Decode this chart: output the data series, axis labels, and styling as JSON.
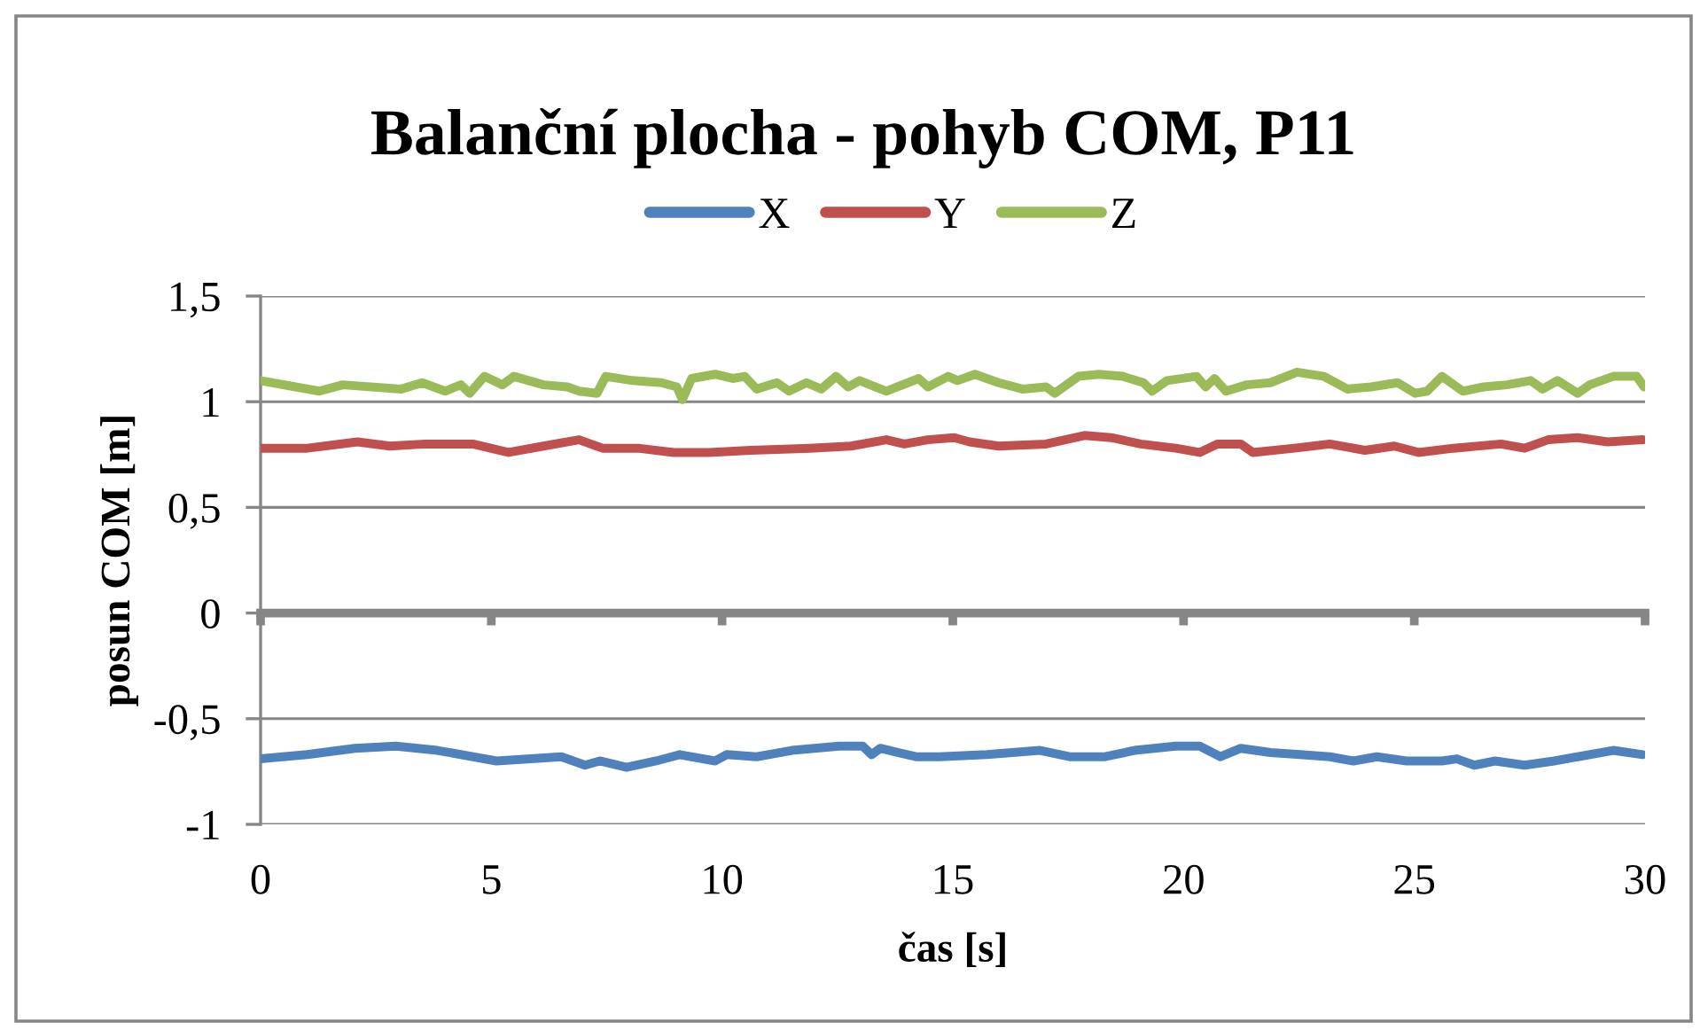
{
  "chart_data": {
    "type": "line",
    "title": "Balanční plocha - pohyb COM, P11",
    "xlabel": "čas [s]",
    "ylabel": "posun COM [m]",
    "xlim": [
      0,
      30
    ],
    "xticks": [
      0,
      5,
      10,
      15,
      20,
      25,
      30
    ],
    "ylim": [
      -1,
      1.5
    ],
    "yticks": [
      {
        "value": 1.5,
        "label": "1,5"
      },
      1,
      {
        "value": 0.5,
        "label": "0,5"
      },
      0,
      {
        "value": -0.5,
        "label": "-0,5"
      },
      -1
    ],
    "grid": "y",
    "legend": "top",
    "marker": "none",
    "line_style": "solid",
    "series": [
      {
        "name": "X",
        "color": "#4f81bd",
        "x": [
          0,
          1.01,
          2.04,
          2.93,
          3.83,
          5.11,
          6.52,
          7.03,
          7.35,
          7.93,
          8.57,
          9.08,
          9.85,
          10.1,
          10.75,
          11.51,
          12.54,
          13.05,
          13.24,
          13.43,
          14.2,
          14.71,
          15.74,
          16.89,
          17.53,
          18.3,
          18.94,
          19.83,
          20.35,
          20.8,
          21.24,
          21.89,
          22.52,
          23.17,
          23.68,
          24.19,
          24.83,
          25.6,
          25.92,
          26.3,
          26.75,
          27.39,
          28.03,
          28.54,
          29.31,
          29.95
        ],
        "values": [
          -0.69,
          -0.67,
          -0.64,
          -0.63,
          -0.65,
          -0.7,
          -0.68,
          -0.72,
          -0.7,
          -0.73,
          -0.7,
          -0.67,
          -0.7,
          -0.67,
          -0.68,
          -0.65,
          -0.63,
          -0.63,
          -0.67,
          -0.64,
          -0.68,
          -0.68,
          -0.67,
          -0.65,
          -0.68,
          -0.68,
          -0.65,
          -0.63,
          -0.63,
          -0.68,
          -0.64,
          -0.66,
          -0.67,
          -0.68,
          -0.7,
          -0.68,
          -0.7,
          -0.7,
          -0.69,
          -0.72,
          -0.7,
          -0.72,
          -0.7,
          -0.68,
          -0.65,
          -0.67
        ]
      },
      {
        "name": "Y",
        "color": "#c0504d",
        "x": [
          0,
          1.01,
          2.1,
          2.8,
          3.57,
          4.6,
          5.37,
          6.13,
          6.9,
          7.41,
          8.18,
          8.95,
          9.72,
          10.62,
          11.9,
          12.79,
          13.56,
          13.95,
          14.46,
          15.03,
          15.36,
          15.99,
          17.02,
          17.85,
          18.43,
          19.07,
          19.83,
          20.35,
          20.73,
          21.24,
          21.5,
          22.4,
          23.17,
          23.93,
          24.57,
          25.09,
          25.85,
          26.88,
          27.39,
          27.9,
          28.54,
          29.19,
          29.95
        ],
        "values": [
          0.78,
          0.78,
          0.81,
          0.79,
          0.8,
          0.8,
          0.76,
          0.79,
          0.82,
          0.78,
          0.78,
          0.76,
          0.76,
          0.77,
          0.78,
          0.79,
          0.82,
          0.8,
          0.82,
          0.83,
          0.81,
          0.79,
          0.8,
          0.84,
          0.83,
          0.8,
          0.78,
          0.76,
          0.8,
          0.8,
          0.76,
          0.78,
          0.8,
          0.77,
          0.79,
          0.76,
          0.78,
          0.8,
          0.78,
          0.82,
          0.83,
          0.81,
          0.82
        ]
      },
      {
        "name": "Z",
        "color": "#9bbb59",
        "x": [
          0,
          1.27,
          1.78,
          3.05,
          3.5,
          4.0,
          4.34,
          4.53,
          4.85,
          5.24,
          5.49,
          6.13,
          6.65,
          6.9,
          7.29,
          7.48,
          8.06,
          8.69,
          9.02,
          9.14,
          9.34,
          9.85,
          10.23,
          10.49,
          10.75,
          11.19,
          11.45,
          11.83,
          12.15,
          12.47,
          12.73,
          12.98,
          13.56,
          14.26,
          14.46,
          14.9,
          15.1,
          15.48,
          15.99,
          16.51,
          17.02,
          17.21,
          17.72,
          18.17,
          18.68,
          19.13,
          19.32,
          19.64,
          20.28,
          20.48,
          20.67,
          20.92,
          21.37,
          21.88,
          22.46,
          23.04,
          23.55,
          24.06,
          24.64,
          25.02,
          25.28,
          25.6,
          26.05,
          26.5,
          27.01,
          27.52,
          27.78,
          28.1,
          28.54,
          28.8,
          29.31,
          29.82,
          29.98
        ],
        "values": [
          1.1,
          1.05,
          1.08,
          1.06,
          1.09,
          1.05,
          1.08,
          1.04,
          1.12,
          1.08,
          1.12,
          1.08,
          1.07,
          1.05,
          1.04,
          1.12,
          1.1,
          1.09,
          1.07,
          1.01,
          1.11,
          1.13,
          1.11,
          1.12,
          1.06,
          1.09,
          1.05,
          1.09,
          1.06,
          1.12,
          1.07,
          1.1,
          1.05,
          1.11,
          1.07,
          1.12,
          1.1,
          1.13,
          1.09,
          1.06,
          1.07,
          1.04,
          1.12,
          1.13,
          1.12,
          1.09,
          1.05,
          1.1,
          1.12,
          1.07,
          1.11,
          1.05,
          1.08,
          1.09,
          1.14,
          1.12,
          1.06,
          1.07,
          1.09,
          1.04,
          1.05,
          1.12,
          1.05,
          1.07,
          1.08,
          1.1,
          1.06,
          1.1,
          1.04,
          1.08,
          1.12,
          1.12,
          1.07
        ]
      }
    ]
  }
}
